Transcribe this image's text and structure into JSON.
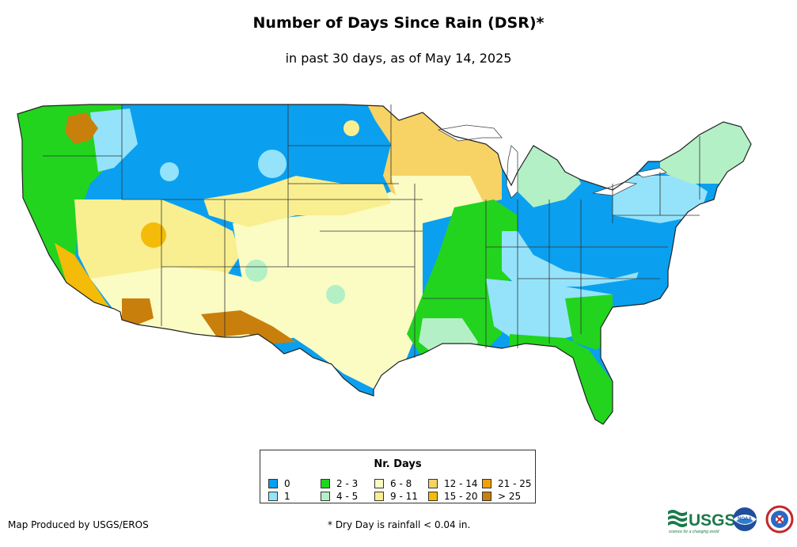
{
  "title": "Number of Days Since Rain (DSR)*",
  "subtitle": "in past 30 days, as of May 14, 2025",
  "legend": {
    "title": "Nr. Days",
    "items": [
      {
        "label": "0",
        "color": "#0aa0ef"
      },
      {
        "label": "1",
        "color": "#94e3fb"
      },
      {
        "label": "2 - 3",
        "color": "#22d41e"
      },
      {
        "label": "4 - 5",
        "color": "#b3f0c6"
      },
      {
        "label": "6 - 8",
        "color": "#fbfbc4"
      },
      {
        "label": "9 - 11",
        "color": "#f9ef91"
      },
      {
        "label": "12 - 14",
        "color": "#f7d265"
      },
      {
        "label": "15 - 20",
        "color": "#f4bb08"
      },
      {
        "label": "21 - 25",
        "color": "#efa00a"
      },
      {
        "label": "> 25",
        "color": "#c97f0c"
      }
    ]
  },
  "credit": "Map Produced by USGS/EROS",
  "footnote": "* Dry Day is rainfall < 0.04 in.",
  "logos": {
    "usgs_text": "USGS",
    "usgs_tagline": "science for a changing world",
    "noaa_text": "NOAA",
    "nws_icon": "nws-logo-icon"
  }
}
